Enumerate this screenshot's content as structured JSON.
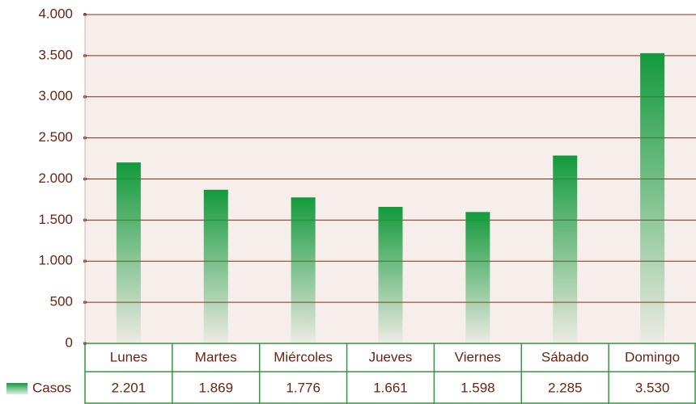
{
  "chart_data": {
    "type": "bar",
    "categories": [
      "Lunes",
      "Martes",
      "Miércoles",
      "Jueves",
      "Viernes",
      "Sábado",
      "Domingo"
    ],
    "series": [
      {
        "name": "Casos",
        "color": "#139a3c",
        "values": [
          2201,
          1869,
          1776,
          1661,
          1598,
          2285,
          3530
        ],
        "value_labels": [
          "2.201",
          "1.869",
          "1.776",
          "1.661",
          "1.598",
          "2.285",
          "3.530"
        ]
      }
    ],
    "ylim": [
      0,
      4000
    ],
    "yticks": [
      0,
      500,
      {
        "value": 1000,
        "label": "1.000"
      },
      {
        "value": 1500,
        "label": "1.500"
      },
      {
        "value": 2000,
        "label": "2.000"
      },
      {
        "value": 2500,
        "label": "2.500"
      },
      {
        "value": 3000,
        "label": "3.000"
      },
      {
        "value": 3500,
        "label": "3.500"
      },
      {
        "value": 4000,
        "label": "4.000"
      }
    ],
    "grid": true
  }
}
